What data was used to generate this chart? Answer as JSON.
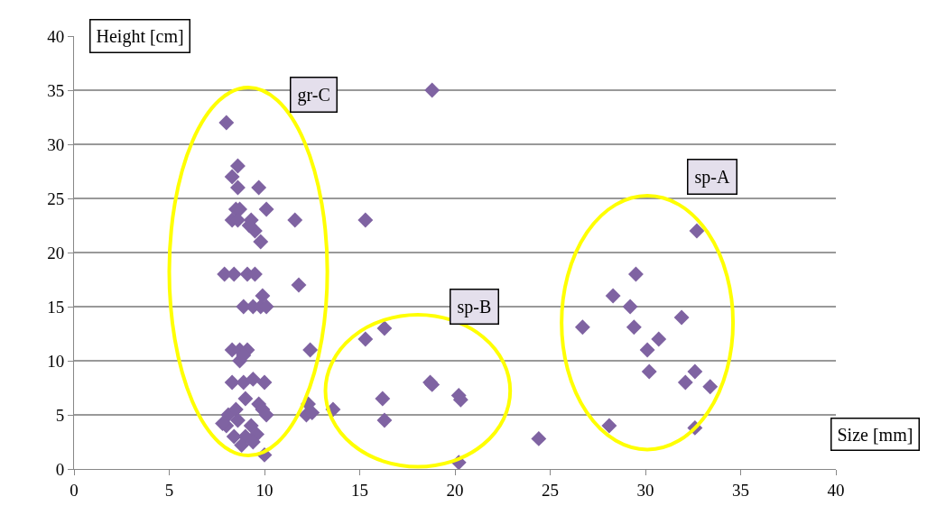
{
  "chart_data": {
    "type": "scatter",
    "xlabel": "Size [mm]",
    "ylabel": "Height [cm]",
    "xlim": [
      0,
      40
    ],
    "xticks": [
      0,
      5,
      10,
      15,
      20,
      25,
      30,
      35,
      40
    ],
    "ylim": [
      0,
      40
    ],
    "yticks": [
      0,
      5,
      10,
      15,
      20,
      25,
      30,
      35,
      40
    ],
    "grid": "y",
    "marker": "diamond",
    "series": [
      {
        "color": "#7f63a2",
        "x": [
          8.0,
          8.3,
          8.6,
          8.6,
          8.5,
          8.7,
          8.3,
          8.6,
          9.3,
          9.5,
          9.8,
          9.7,
          10.1,
          9.2,
          7.9,
          8.4,
          9.1,
          9.5,
          8.9,
          9.4,
          9.8,
          10.1,
          9.9,
          8.3,
          8.7,
          9.1,
          8.7,
          8.9,
          8.3,
          8.9,
          9.4,
          10.0,
          9.0,
          9.7,
          9.9,
          10.1,
          8.1,
          8.5,
          8.0,
          8.6,
          9.3,
          9.0,
          9.6,
          8.8,
          9.4,
          8.4,
          7.8,
          10.0,
          11.6,
          11.8,
          12.4,
          12.3,
          12.2,
          12.5,
          13.6,
          15.3,
          15.3,
          16.3,
          16.2,
          16.3,
          18.8,
          18.7,
          18.8,
          20.2,
          20.3,
          20.2,
          24.4,
          29.5,
          28.3,
          29.2,
          31.9,
          26.7,
          29.4,
          30.7,
          30.1,
          30.2,
          32.6,
          32.1,
          33.4,
          28.1,
          32.6,
          32.7
        ],
        "values": [
          32,
          27,
          28,
          26,
          24,
          24,
          23,
          23,
          23,
          22,
          21,
          26,
          24,
          22.5,
          18,
          18,
          18,
          18,
          15,
          15,
          15,
          15,
          16,
          11,
          11,
          11,
          10,
          10.5,
          8,
          8,
          8.3,
          8,
          6.5,
          6,
          5.5,
          5,
          5,
          5.5,
          4,
          4.5,
          4,
          3,
          3.2,
          2.2,
          2.5,
          3,
          4.2,
          1.3,
          23,
          17,
          11,
          6,
          5,
          5.2,
          5.5,
          23,
          12,
          13,
          6.5,
          4.5,
          35,
          8,
          7.8,
          6.8,
          6.4,
          0.6,
          2.8,
          18,
          16,
          15,
          14,
          13.1,
          13.1,
          12,
          11,
          9,
          9,
          8,
          7.6,
          4,
          3.8,
          22
        ]
      }
    ],
    "annotations": [
      "gr-C",
      "sp-B",
      "sp-A"
    ]
  }
}
